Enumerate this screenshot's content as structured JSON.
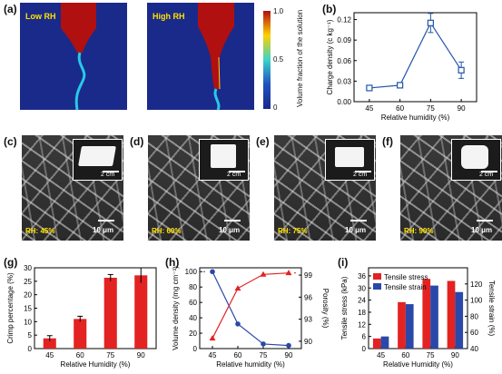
{
  "panels": {
    "a": {
      "label": "(a)"
    },
    "b": {
      "label": "(b)"
    },
    "c": {
      "label": "(c)"
    },
    "d": {
      "label": "(d)"
    },
    "e": {
      "label": "(e)"
    },
    "f": {
      "label": "(f)"
    },
    "g": {
      "label": "(g)"
    },
    "h": {
      "label": "(h)"
    },
    "i": {
      "label": "(i)"
    }
  },
  "simulation": {
    "low_label": "Low RH",
    "high_label": "High RH",
    "colorbar_title": "Volume fraction of the solution",
    "colorbar_ticks": [
      "1.0",
      "0.5",
      "0"
    ],
    "colors": {
      "background": "#1a2a8a",
      "fluid": "#b01010"
    }
  },
  "sem": [
    {
      "rh": "RH: 45%",
      "scale": "10 μm",
      "inset_scale": "2 cm"
    },
    {
      "rh": "RH: 60%",
      "scale": "10 μm",
      "inset_scale": "2 cm"
    },
    {
      "rh": "RH: 75%",
      "scale": "10 μm",
      "inset_scale": "2 cm"
    },
    {
      "rh": "RH: 90%",
      "scale": "10 μm",
      "inset_scale": "2 cm"
    }
  ],
  "chart_data": [
    {
      "id": "b",
      "type": "line",
      "categories": [
        "45",
        "60",
        "75",
        "90"
      ],
      "series": [
        {
          "values": [
            0.02,
            0.024,
            0.115,
            0.046
          ],
          "errors": [
            0.002,
            0.003,
            0.014,
            0.012
          ],
          "color": "#2255aa"
        }
      ],
      "xlabel": "Relative humidity (%)",
      "ylabel": "Charge density (c kg⁻¹)",
      "ylim": [
        0,
        0.13
      ],
      "yticks": [
        "0.00",
        "0.03",
        "0.06",
        "0.09",
        "0.12"
      ],
      "ytick_values": [
        0,
        0.03,
        0.06,
        0.09,
        0.12
      ]
    },
    {
      "id": "g",
      "type": "bar",
      "categories": [
        "45",
        "60",
        "75",
        "90"
      ],
      "values": [
        3.8,
        11.0,
        26.3,
        27.2
      ],
      "errors": [
        1.0,
        1.0,
        1.2,
        2.8
      ],
      "color": "#e32222",
      "xlabel": "Relative Humidity (%)",
      "ylabel": "Crimp percentage (%)",
      "ylim": [
        0,
        30
      ],
      "yticks": [
        "0",
        "5",
        "10",
        "15",
        "20",
        "25",
        "30"
      ],
      "ytick_values": [
        0,
        5,
        10,
        15,
        20,
        25,
        30
      ]
    },
    {
      "id": "h",
      "type": "line",
      "categories": [
        "45",
        "60",
        "75",
        "90"
      ],
      "series": [
        {
          "axis": "left",
          "values": [
            100,
            32,
            6,
            4
          ],
          "color": "#2a48a8"
        },
        {
          "axis": "right",
          "values": [
            90.4,
            97.2,
            99.1,
            99.3
          ],
          "color": "#e32222"
        }
      ],
      "xlabel": "Relative humidity (%)",
      "ylabel": "Volume density (mg cm⁻³)",
      "ylabel_right": "Porosity (%)",
      "ylim": [
        0,
        105
      ],
      "ylim_right": [
        89,
        100
      ],
      "yticks": [
        "0",
        "20",
        "40",
        "60",
        "80",
        "100"
      ],
      "ytick_values": [
        0,
        20,
        40,
        60,
        80,
        100
      ],
      "yticks_right": [
        "90",
        "93",
        "96",
        "99"
      ],
      "ytick_values_right": [
        90,
        93,
        96,
        99
      ]
    },
    {
      "id": "i",
      "type": "bar",
      "categories": [
        "45",
        "60",
        "75",
        "90"
      ],
      "series": [
        {
          "name": "Tensile stress",
          "axis": "left",
          "values": [
            5,
            23,
            34.5,
            33.5
          ],
          "color": "#e32222"
        },
        {
          "name": "Tensile strain",
          "axis": "right",
          "values": [
            55,
            95,
            118,
            110
          ],
          "color": "#2a48a8"
        }
      ],
      "xlabel": "Relative Humidity (%)",
      "ylabel": "Tensile stress (kPa)",
      "ylabel_right": "Tensile strain (%)",
      "ylim": [
        0,
        40
      ],
      "ylim_right": [
        40,
        140
      ],
      "yticks": [
        "0",
        "6",
        "12",
        "18",
        "24",
        "30",
        "36"
      ],
      "ytick_values": [
        0,
        6,
        12,
        18,
        24,
        30,
        36
      ],
      "yticks_right": [
        "40",
        "60",
        "80",
        "100",
        "120"
      ],
      "ytick_values_right": [
        40,
        60,
        80,
        100,
        120
      ],
      "legend": "top-left"
    }
  ]
}
